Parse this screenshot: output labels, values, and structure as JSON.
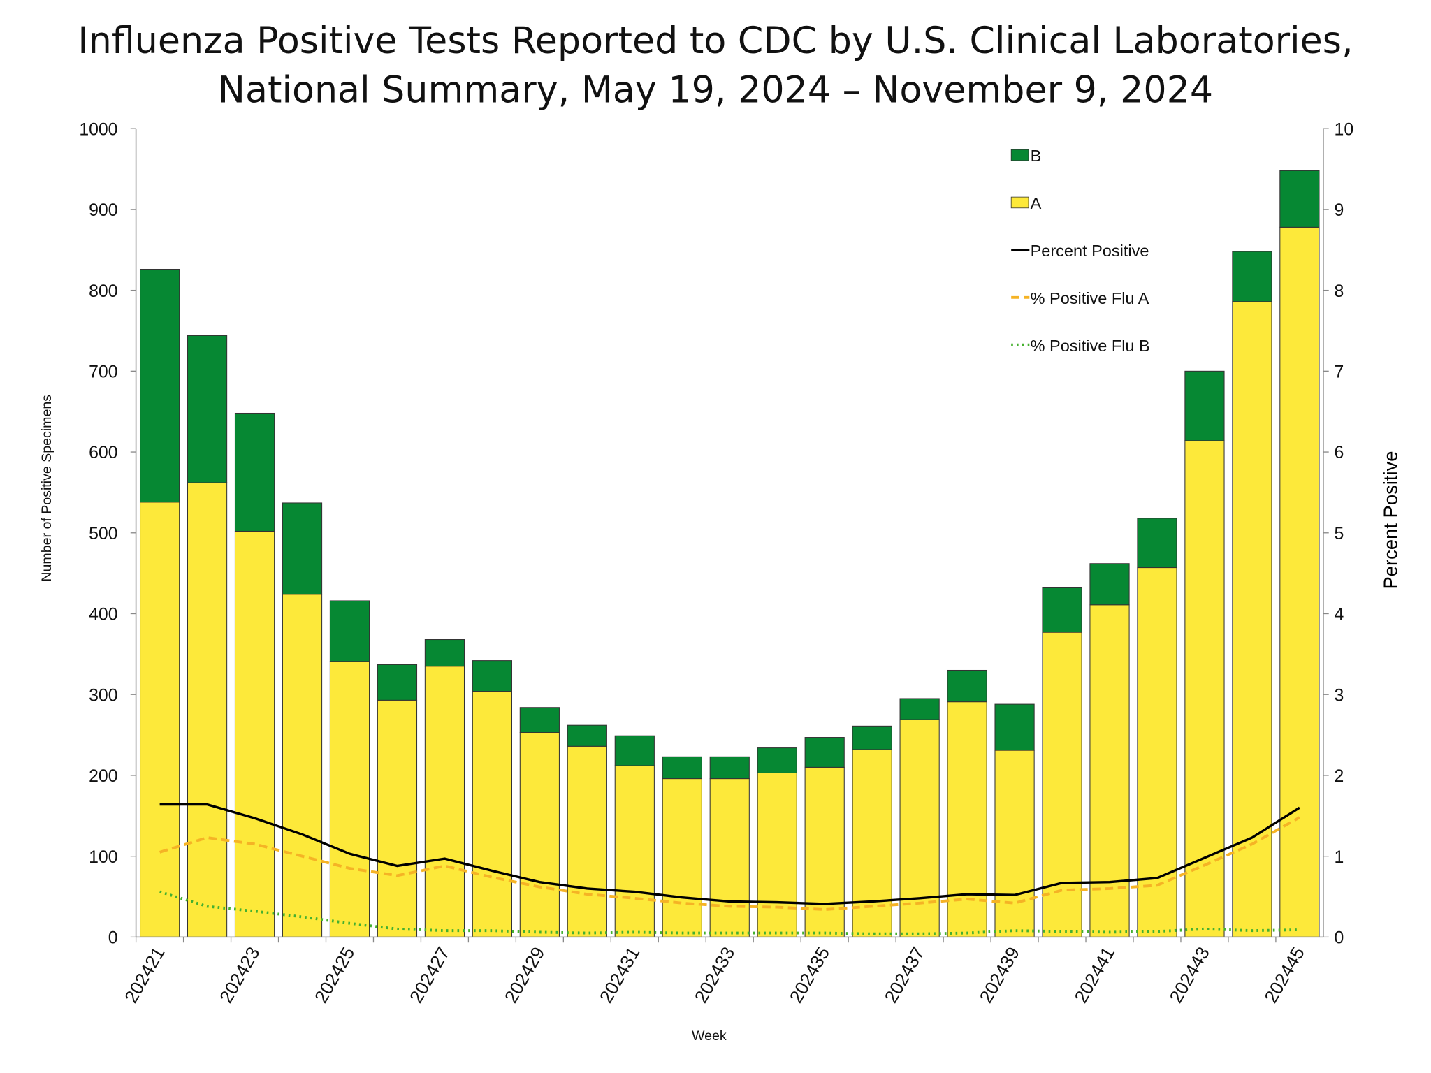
{
  "chart_data": {
    "type": "bar",
    "stacked": true,
    "title": "Influenza Positive Tests Reported to CDC by U.S. Clinical Laboratories,",
    "subtitle": "National Summary, May 19, 2024 – November 9, 2024",
    "xlabel": "Week",
    "ylabel": "Number of Positive Specimens",
    "y2label": "Percent Positive",
    "ylim": [
      0,
      1000
    ],
    "y2lim": [
      0,
      10
    ],
    "yticks": [
      "0",
      "100",
      "200",
      "300",
      "400",
      "500",
      "600",
      "700",
      "800",
      "900",
      "1000"
    ],
    "y2ticks": [
      "0",
      "1",
      "2",
      "3",
      "4",
      "5",
      "6",
      "7",
      "8",
      "9",
      "10"
    ],
    "categories": [
      "202421",
      "202422",
      "202423",
      "202424",
      "202425",
      "202426",
      "202427",
      "202428",
      "202429",
      "202430",
      "202431",
      "202432",
      "202433",
      "202434",
      "202435",
      "202436",
      "202437",
      "202438",
      "202439",
      "202440",
      "202441",
      "202442",
      "202443",
      "202444",
      "202445"
    ],
    "xtick_labels": [
      "202421",
      "202423",
      "202425",
      "202427",
      "202429",
      "202431",
      "202433",
      "202435",
      "202437",
      "202439",
      "202441",
      "202443",
      "202445"
    ],
    "grid": false,
    "legend_position": "top-right",
    "series": [
      {
        "name": "A",
        "kind": "bar",
        "axis": "left",
        "color": "#FDE93A",
        "values": [
          538,
          562,
          502,
          424,
          341,
          293,
          335,
          304,
          253,
          236,
          212,
          196,
          196,
          203,
          210,
          232,
          269,
          291,
          231,
          377,
          411,
          457,
          614,
          786,
          878
        ]
      },
      {
        "name": "B",
        "kind": "bar",
        "axis": "left",
        "color": "#068833",
        "values": [
          288,
          182,
          146,
          113,
          75,
          44,
          33,
          38,
          31,
          26,
          37,
          27,
          27,
          31,
          37,
          29,
          26,
          39,
          57,
          55,
          51,
          61,
          86,
          62,
          70
        ]
      },
      {
        "name": "Percent Positive",
        "kind": "line",
        "axis": "right",
        "color": "#000000",
        "dash": "solid",
        "values": [
          1.64,
          1.64,
          1.47,
          1.27,
          1.03,
          0.88,
          0.97,
          0.82,
          0.68,
          0.6,
          0.56,
          0.49,
          0.44,
          0.43,
          0.41,
          0.44,
          0.48,
          0.53,
          0.52,
          0.67,
          0.68,
          0.73,
          0.98,
          1.23,
          1.6
        ]
      },
      {
        "name": "% Positive Flu A",
        "kind": "line",
        "axis": "right",
        "color": "#F5B325",
        "dash": "dashed",
        "values": [
          1.05,
          1.23,
          1.15,
          1.0,
          0.85,
          0.76,
          0.88,
          0.74,
          0.62,
          0.53,
          0.48,
          0.42,
          0.38,
          0.37,
          0.34,
          0.38,
          0.42,
          0.47,
          0.42,
          0.58,
          0.6,
          0.64,
          0.89,
          1.15,
          1.48
        ]
      },
      {
        "name": "% Positive Flu B",
        "kind": "line",
        "axis": "right",
        "color": "#44B02F",
        "dash": "dotted",
        "values": [
          0.56,
          0.38,
          0.32,
          0.25,
          0.17,
          0.1,
          0.08,
          0.08,
          0.06,
          0.05,
          0.06,
          0.05,
          0.05,
          0.05,
          0.05,
          0.04,
          0.04,
          0.05,
          0.08,
          0.07,
          0.06,
          0.07,
          0.1,
          0.08,
          0.09
        ]
      }
    ],
    "legend": [
      "B",
      "A",
      "Percent Positive",
      "% Positive Flu A",
      "% Positive Flu B"
    ]
  }
}
